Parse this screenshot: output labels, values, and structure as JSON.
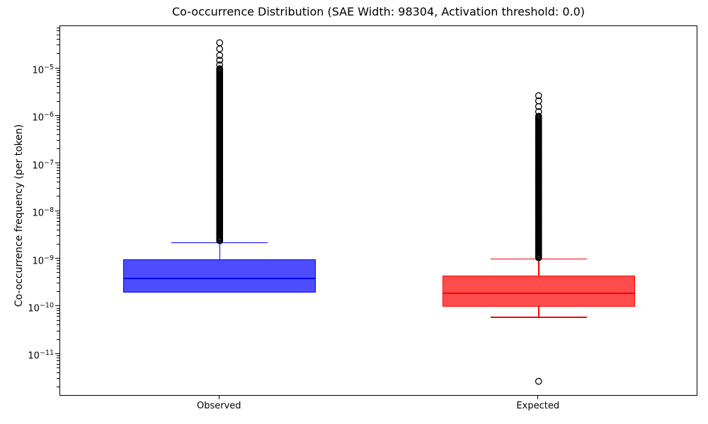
{
  "figure": {
    "background": "#ffffff"
  },
  "chart_data": {
    "type": "boxplot",
    "title": "Co-occurrence Distribution (SAE Width: 98304, Activation threshold: 0.0)",
    "ylabel": "Co-occurrence frequency (per token)",
    "xlabel": "",
    "yscale": "log",
    "ylim": [
      1.3e-12,
      7.8e-05
    ],
    "ytick_exponents": [
      -5,
      -6,
      -7,
      -8,
      -9,
      -10,
      -11
    ],
    "grid": false,
    "legend": "none",
    "categories": [
      "Observed",
      "Expected"
    ],
    "flier_marker": {
      "shape": "open-circle",
      "color": "#000000"
    },
    "boxes": [
      {
        "label": "Observed",
        "color": "#0000ff",
        "fill": "#4d4dff",
        "whisker_low": 2e-10,
        "q1": 2e-10,
        "median": 3.9e-10,
        "q3": 1e-09,
        "whisker_high": 2.2e-09,
        "outliers_top": [
          3.5e-05,
          2.6e-05,
          1.9e-05,
          1.5e-05,
          1.2e-05
        ],
        "outlier_dense_range": [
          2.4e-09,
          1e-05
        ],
        "outliers_low": []
      },
      {
        "label": "Expected",
        "color": "#ff0000",
        "fill": "#ff4d4d",
        "whisker_low": 6e-11,
        "q1": 1e-10,
        "median": 1.9e-10,
        "q3": 4.5e-10,
        "whisker_high": 1e-09,
        "outliers_top": [
          2.7e-06,
          2.1e-06,
          1.6e-06,
          1.25e-06
        ],
        "outlier_dense_range": [
          1.05e-09,
          1e-06
        ],
        "outliers_low": [
          2.7e-12
        ]
      }
    ]
  }
}
